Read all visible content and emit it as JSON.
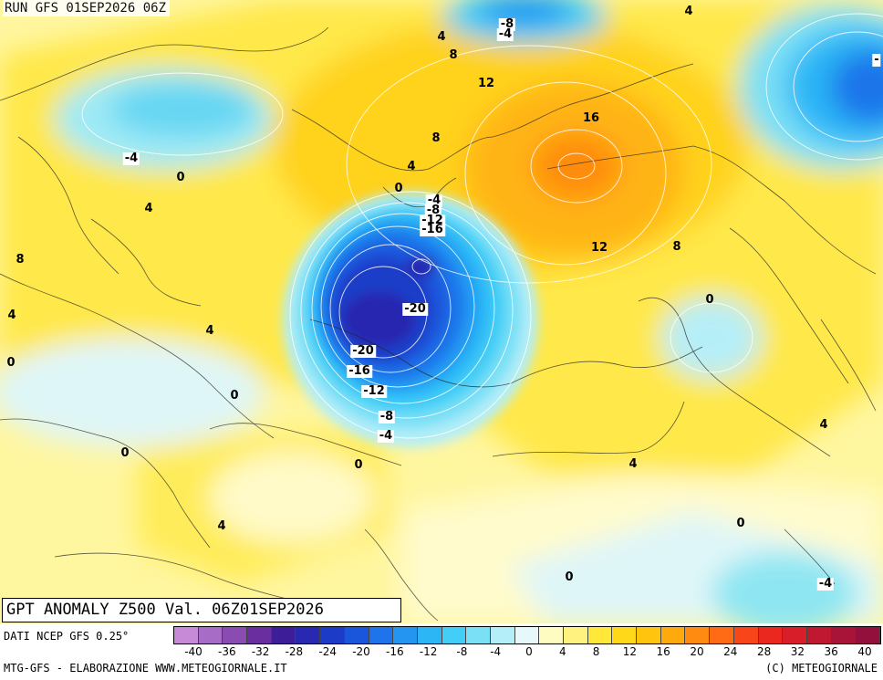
{
  "header": {
    "run_title": "RUN GFS 01SEP2026 06Z",
    "anomaly_title": "GPT ANOMALY Z500 Val. 06Z01SEP2026"
  },
  "map_labels": [
    {
      "text": "-8",
      "boxed": true
    },
    {
      "text": "-4",
      "boxed": true
    },
    {
      "text": "4",
      "boxed": false
    },
    {
      "text": "4",
      "boxed": false
    },
    {
      "text": "8",
      "boxed": false
    },
    {
      "text": "12",
      "boxed": false
    },
    {
      "text": "16",
      "boxed": false
    },
    {
      "text": "8",
      "boxed": false
    },
    {
      "text": "4",
      "boxed": false
    },
    {
      "text": "0",
      "boxed": false
    },
    {
      "text": "-4",
      "boxed": true
    },
    {
      "text": "-8",
      "boxed": true
    },
    {
      "text": "-12",
      "boxed": true
    },
    {
      "text": "-16",
      "boxed": true
    },
    {
      "text": "-4",
      "boxed": true
    },
    {
      "text": "0",
      "boxed": false
    },
    {
      "text": "4",
      "boxed": false
    },
    {
      "text": "8",
      "boxed": false
    },
    {
      "text": "4",
      "boxed": false
    },
    {
      "text": "0",
      "boxed": false
    },
    {
      "text": "12",
      "boxed": false
    },
    {
      "text": "8",
      "boxed": false
    },
    {
      "text": "0",
      "boxed": false
    },
    {
      "text": "-20",
      "boxed": true
    },
    {
      "text": "-20",
      "boxed": true
    },
    {
      "text": "-16",
      "boxed": true
    },
    {
      "text": "-12",
      "boxed": true
    },
    {
      "text": "-8",
      "boxed": true
    },
    {
      "text": "-4",
      "boxed": true
    },
    {
      "text": "4",
      "boxed": false
    },
    {
      "text": "0",
      "boxed": false
    },
    {
      "text": "0",
      "boxed": false
    },
    {
      "text": "0",
      "boxed": false
    },
    {
      "text": "4",
      "boxed": false
    },
    {
      "text": "4",
      "boxed": false
    },
    {
      "text": "0",
      "boxed": false
    },
    {
      "text": "4",
      "boxed": false
    },
    {
      "text": "0",
      "boxed": false
    },
    {
      "text": "-4",
      "boxed": true
    },
    {
      "text": "-",
      "boxed": true
    }
  ],
  "footer": {
    "data_source": "DATI NCEP GFS 0.25°",
    "credit_left": "MTG-GFS - ELABORAZIONE WWW.METEOGIORNALE.IT",
    "credit_right": "(C) METEOGIORNALE"
  },
  "legend": {
    "colors": [
      "#c68ad6",
      "#a66cc6",
      "#8a4cb0",
      "#6a2e9e",
      "#3e1e98",
      "#2828b0",
      "#1c3cc8",
      "#1a56dc",
      "#1e74ea",
      "#2496f2",
      "#2cb6f6",
      "#42cef6",
      "#7ae0f6",
      "#b4eef8",
      "#e6f8fa",
      "#fffcc2",
      "#fff27e",
      "#ffe83a",
      "#ffd81a",
      "#ffc40e",
      "#ffaa0c",
      "#ff8c10",
      "#ff6a14",
      "#f8461a",
      "#ea2820",
      "#d81e28",
      "#c01830",
      "#a81438",
      "#94103c"
    ],
    "tick_labels": [
      "-40",
      "-36",
      "-32",
      "-28",
      "-24",
      "-20",
      "-16",
      "-12",
      "-8",
      "-4",
      "0",
      "4",
      "8",
      "12",
      "16",
      "20",
      "24",
      "28",
      "32",
      "36",
      "40"
    ]
  }
}
